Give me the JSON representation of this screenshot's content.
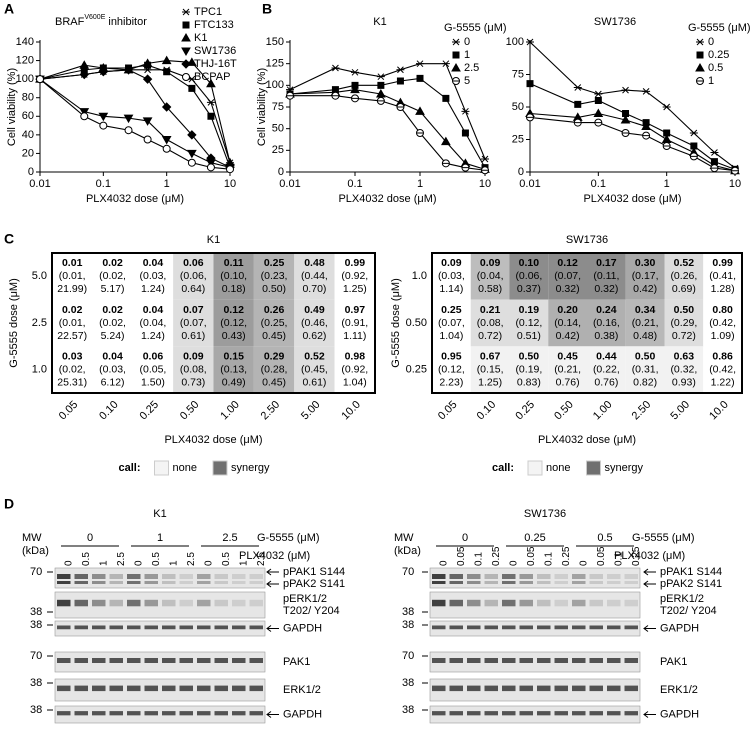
{
  "panel_labels": [
    "A",
    "B",
    "C",
    "D"
  ],
  "chart_data": [
    {
      "type": "line",
      "title": "BRAF",
      "title_superscript": "V600E",
      "title_suffix": "inhibitor",
      "xlabel": "PLX4032 dose (μM)",
      "ylabel": "Cell viability (%)",
      "x": [
        0.01,
        0.05,
        0.1,
        0.25,
        0.5,
        1,
        2.5,
        5,
        10
      ],
      "log_x": true,
      "xlim": [
        0.01,
        10
      ],
      "xticks": [
        0.01,
        0.1,
        1,
        10
      ],
      "ylim": [
        0,
        140
      ],
      "yticks": [
        0,
        20,
        40,
        60,
        80,
        100,
        120,
        140
      ],
      "color": "#000000",
      "legend": "upper right",
      "series": [
        {
          "name": "TPC1",
          "marker": "asterisk",
          "values": [
            100,
            105,
            108,
            110,
            110,
            110,
            100,
            75,
            10
          ]
        },
        {
          "name": "FTC133",
          "marker": "square",
          "values": [
            100,
            110,
            112,
            112,
            115,
            108,
            90,
            60,
            5
          ]
        },
        {
          "name": "K1",
          "marker": "triangle",
          "values": [
            100,
            115,
            112,
            110,
            117,
            120,
            118,
            95,
            10
          ]
        },
        {
          "name": "SW1736",
          "marker": "triangle-down",
          "values": [
            100,
            65,
            60,
            58,
            55,
            35,
            20,
            10,
            5
          ]
        },
        {
          "name": "THJ-16T",
          "marker": "diamond",
          "values": [
            100,
            105,
            108,
            110,
            100,
            70,
            40,
            15,
            5
          ]
        },
        {
          "name": "BCPAP",
          "marker": "circle-open",
          "values": [
            100,
            60,
            50,
            45,
            35,
            25,
            10,
            5,
            3
          ]
        }
      ]
    },
    {
      "type": "line",
      "title": "K1",
      "xlabel": "PLX4032 dose (μM)",
      "ylabel": "Cell viability (%)",
      "x": [
        0.01,
        0.05,
        0.1,
        0.25,
        0.5,
        1,
        2.5,
        5,
        10
      ],
      "log_x": true,
      "xlim": [
        0.01,
        10
      ],
      "xticks": [
        0.01,
        0.1,
        1,
        10
      ],
      "ylim": [
        0,
        150
      ],
      "yticks": [
        0,
        25,
        50,
        75,
        100,
        125,
        150
      ],
      "color": "#000000",
      "legend": "upper right",
      "legend_title": "G-5555 (μM)",
      "series": [
        {
          "name": "0",
          "marker": "asterisk",
          "values": [
            95,
            120,
            115,
            110,
            118,
            125,
            125,
            70,
            15
          ]
        },
        {
          "name": "1",
          "marker": "square",
          "values": [
            90,
            95,
            100,
            100,
            105,
            108,
            85,
            45,
            5
          ]
        },
        {
          "name": "2.5",
          "marker": "triangle",
          "values": [
            90,
            92,
            95,
            90,
            80,
            70,
            35,
            10,
            3
          ]
        },
        {
          "name": "5",
          "marker": "circle-bar",
          "values": [
            88,
            88,
            85,
            82,
            75,
            45,
            10,
            5,
            2
          ]
        }
      ]
    },
    {
      "type": "line",
      "title": "SW1736",
      "xlabel": "PLX4032 dose (μM)",
      "x": [
        0.01,
        0.05,
        0.1,
        0.25,
        0.5,
        1,
        2.5,
        5,
        10
      ],
      "log_x": true,
      "xlim": [
        0.01,
        10
      ],
      "xticks": [
        0.01,
        0.1,
        1,
        10
      ],
      "ylim": [
        0,
        100
      ],
      "yticks": [
        0,
        25,
        50,
        75,
        100
      ],
      "color": "#000000",
      "legend": "upper right",
      "legend_title": "G-5555 (μM)",
      "series": [
        {
          "name": "0",
          "marker": "asterisk",
          "values": [
            100,
            65,
            60,
            63,
            62,
            50,
            30,
            15,
            3
          ]
        },
        {
          "name": "0.25",
          "marker": "square",
          "values": [
            68,
            52,
            55,
            45,
            38,
            30,
            20,
            8,
            2
          ]
        },
        {
          "name": "0.5",
          "marker": "triangle",
          "values": [
            45,
            42,
            45,
            40,
            35,
            25,
            15,
            5,
            1
          ]
        },
        {
          "name": "1",
          "marker": "circle-bar",
          "values": [
            42,
            38,
            38,
            30,
            28,
            20,
            12,
            3,
            1
          ]
        }
      ]
    }
  ],
  "heatmaps": [
    {
      "title": "K1",
      "ylabel": "G-5555 dose (μM)",
      "xlabel": "PLX4032 dose (μM)",
      "rows": [
        "5.0",
        "2.5",
        "1.0"
      ],
      "cols": [
        "0.05",
        "0.10",
        "0.25",
        "0.50",
        "1.00",
        "2.50",
        "5.00",
        "10.0"
      ],
      "cells": [
        [
          [
            "0.01",
            "(0.01,",
            "21.99)"
          ],
          [
            "0.02",
            "(0.02,",
            "5.17)"
          ],
          [
            "0.04",
            "(0.03,",
            "1.24)"
          ],
          [
            "0.06",
            "(0.06,",
            "0.64)"
          ],
          [
            "0.11",
            "(0.10,",
            "0.18)"
          ],
          [
            "0.25",
            "(0.23,",
            "0.50)"
          ],
          [
            "0.48",
            "(0.44,",
            "0.70)"
          ],
          [
            "0.99",
            "(0.92,",
            "1.25)"
          ]
        ],
        [
          [
            "0.02",
            "(0.01,",
            "22.57)"
          ],
          [
            "0.02",
            "(0.02,",
            "5.24)"
          ],
          [
            "0.04",
            "(0.04,",
            "1.24)"
          ],
          [
            "0.07",
            "(0.07,",
            "0.61)"
          ],
          [
            "0.12",
            "(0.12,",
            "0.43)"
          ],
          [
            "0.26",
            "(0.25,",
            "0.45)"
          ],
          [
            "0.49",
            "(0.46,",
            "0.62)"
          ],
          [
            "0.97",
            "(0.91,",
            "1.11)"
          ]
        ],
        [
          [
            "0.03",
            "(0.02,",
            "25.31)"
          ],
          [
            "0.04",
            "(0.03,",
            "6.12)"
          ],
          [
            "0.06",
            "(0.05,",
            "1.50)"
          ],
          [
            "0.09",
            "(0.08,",
            "0.73)"
          ],
          [
            "0.15",
            "(0.13,",
            "0.49)"
          ],
          [
            "0.29",
            "(0.28,",
            "0.45)"
          ],
          [
            "0.52",
            "(0.45,",
            "0.61)"
          ],
          [
            "0.98",
            "(0.92,",
            "1.04)"
          ]
        ]
      ],
      "fills": [
        [
          "#ffffff",
          "#ffffff",
          "#ffffff",
          "#dedede",
          "#9c9c9c",
          "#b4b4b4",
          "#dedede",
          "#ffffff"
        ],
        [
          "#ffffff",
          "#ffffff",
          "#ffffff",
          "#dedede",
          "#9c9c9c",
          "#b4b4b4",
          "#dedede",
          "#ffffff"
        ],
        [
          "#ffffff",
          "#ffffff",
          "#ffffff",
          "#dedede",
          "#a8a8a8",
          "#b4b4b4",
          "#dedede",
          "#ffffff"
        ]
      ],
      "legend": {
        "label": "call:",
        "items": [
          {
            "name": "none",
            "color": "#f4f4f4"
          },
          {
            "name": "synergy",
            "color": "#707070"
          }
        ]
      }
    },
    {
      "title": "SW1736",
      "ylabel": "G-5555 dose (μM)",
      "xlabel": "PLX4032 dose (μM)",
      "rows": [
        "1.0",
        "0.50",
        "0.25"
      ],
      "cols": [
        "0.05",
        "0.10",
        "0.25",
        "0.50",
        "1.00",
        "2.50",
        "5.00",
        "10.0"
      ],
      "cells": [
        [
          [
            "0.09",
            "(0.03,",
            "1.14)"
          ],
          [
            "0.09",
            "(0.04,",
            "0.58)"
          ],
          [
            "0.10",
            "(0.06,",
            "0.37)"
          ],
          [
            "0.12",
            "(0.07,",
            "0.32)"
          ],
          [
            "0.17",
            "(0.11,",
            "0.32)"
          ],
          [
            "0.30",
            "(0.17,",
            "0.42)"
          ],
          [
            "0.52",
            "(0.26,",
            "0.69)"
          ],
          [
            "0.99",
            "(0.41,",
            "1.28)"
          ]
        ],
        [
          [
            "0.25",
            "(0.07,",
            "1.04)"
          ],
          [
            "0.21",
            "(0.08,",
            "0.72)"
          ],
          [
            "0.19",
            "(0.12,",
            "0.51)"
          ],
          [
            "0.20",
            "(0.14,",
            "0.42)"
          ],
          [
            "0.24",
            "(0.16,",
            "0.38)"
          ],
          [
            "0.34",
            "(0.21,",
            "0.48)"
          ],
          [
            "0.50",
            "(0.29,",
            "0.72)"
          ],
          [
            "0.80",
            "(0.42,",
            "1.09)"
          ]
        ],
        [
          [
            "0.95",
            "(0.12,",
            "2.23)"
          ],
          [
            "0.67",
            "(0.15,",
            "1.25)"
          ],
          [
            "0.50",
            "(0.19,",
            "0.83)"
          ],
          [
            "0.45",
            "(0.21,",
            "0.76)"
          ],
          [
            "0.44",
            "(0.22,",
            "0.76)"
          ],
          [
            "0.50",
            "(0.31,",
            "0.82)"
          ],
          [
            "0.63",
            "(0.32,",
            "0.93)"
          ],
          [
            "0.86",
            "(0.42,",
            "1.22)"
          ]
        ]
      ],
      "fills": [
        [
          "#ffffff",
          "#bdbdbd",
          "#8c8c8c",
          "#8c8c8c",
          "#8c8c8c",
          "#a8a8a8",
          "#dcdcdc",
          "#ffffff"
        ],
        [
          "#ffffff",
          "#dedede",
          "#dedede",
          "#b0b0b0",
          "#b0b0b0",
          "#b8b8b8",
          "#dedede",
          "#ffffff"
        ],
        [
          "#ffffff",
          "#f2f2f2",
          "#f2f2f2",
          "#f2f2f2",
          "#f2f2f2",
          "#f2f2f2",
          "#f2f2f2",
          "#ffffff"
        ]
      ],
      "legend": {
        "label": "call:",
        "items": [
          {
            "name": "none",
            "color": "#f4f4f4"
          },
          {
            "name": "synergy",
            "color": "#707070"
          }
        ]
      }
    }
  ],
  "blots": [
    {
      "title": "K1",
      "mw_label": [
        "MW",
        "(kDa)"
      ],
      "group_label": "G-5555 (μM)",
      "lane_label": "PLX4032 (μM)",
      "groups": [
        "0",
        "1",
        "2.5"
      ],
      "lanes": [
        "0",
        "0.5",
        "1",
        "2.5"
      ],
      "strips": [
        {
          "mw": "70",
          "labels": [
            "pPAK1 S144",
            "pPAK2 S141"
          ],
          "arrow": true,
          "phospho": true
        },
        {
          "mw": "38",
          "labels": [
            "pERK1/2",
            "T202/ Y204"
          ],
          "arrow": false,
          "phospho": true
        },
        {
          "mw": "38",
          "labels": [
            "GAPDH"
          ],
          "arrow": true,
          "phospho": false
        },
        {
          "mw": "70",
          "labels": [
            "PAK1"
          ],
          "arrow": false,
          "phospho": false
        },
        {
          "mw": "38",
          "labels": [
            "ERK1/2"
          ],
          "arrow": false,
          "phospho": false
        },
        {
          "mw": "38",
          "labels": [
            "GAPDH"
          ],
          "arrow": true,
          "phospho": false
        }
      ]
    },
    {
      "title": "SW1736",
      "mw_label": [
        "MW",
        "(kDa)"
      ],
      "group_label": "G-5555 (μM)",
      "lane_label": "PLX4032 (μM)",
      "groups": [
        "0",
        "0.25",
        "0.5"
      ],
      "lanes": [
        "0",
        "0.05",
        "0.1",
        "0.25"
      ],
      "strips": [
        {
          "mw": "70",
          "labels": [
            "pPAK1 S144",
            "pPAK2 S141"
          ],
          "arrow": true,
          "phospho": true
        },
        {
          "mw": "38",
          "labels": [
            "pERK1/2",
            "T202/ Y204"
          ],
          "arrow": false,
          "phospho": true
        },
        {
          "mw": "38",
          "labels": [
            "GAPDH"
          ],
          "arrow": true,
          "phospho": false
        },
        {
          "mw": "70",
          "labels": [
            "PAK1"
          ],
          "arrow": false,
          "phospho": false
        },
        {
          "mw": "38",
          "labels": [
            "ERK1/2"
          ],
          "arrow": false,
          "phospho": false
        },
        {
          "mw": "38",
          "labels": [
            "GAPDH"
          ],
          "arrow": true,
          "phospho": false
        }
      ]
    }
  ]
}
